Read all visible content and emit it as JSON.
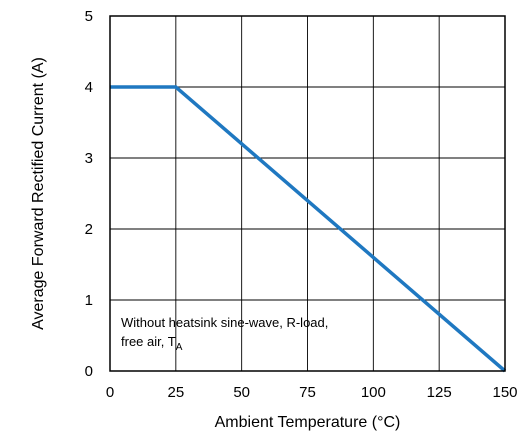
{
  "chart_data": {
    "type": "line",
    "title": "",
    "xlabel": "Ambient Temperature (°C)",
    "ylabel": "Average Forward Rectified Current (A)",
    "xlim": [
      0,
      150
    ],
    "ylim": [
      0,
      5
    ],
    "x_ticks": [
      0,
      25,
      50,
      75,
      100,
      125,
      150
    ],
    "y_ticks": [
      0,
      1,
      2,
      3,
      4,
      5
    ],
    "x_tick_labels": [
      "0",
      "25",
      "50",
      "75",
      "100",
      "125",
      "150"
    ],
    "y_tick_labels": [
      "0",
      "1",
      "2",
      "3",
      "4",
      "5"
    ],
    "grid": true,
    "series": [
      {
        "x": [
          0,
          25,
          150
        ],
        "y": [
          4,
          4,
          0
        ],
        "color": "#1f78c1"
      }
    ],
    "annotation": {
      "line1": "Without heatsink sine-wave, R-load,",
      "line2_prefix": "free air, T",
      "line2_subscript": "A"
    }
  }
}
